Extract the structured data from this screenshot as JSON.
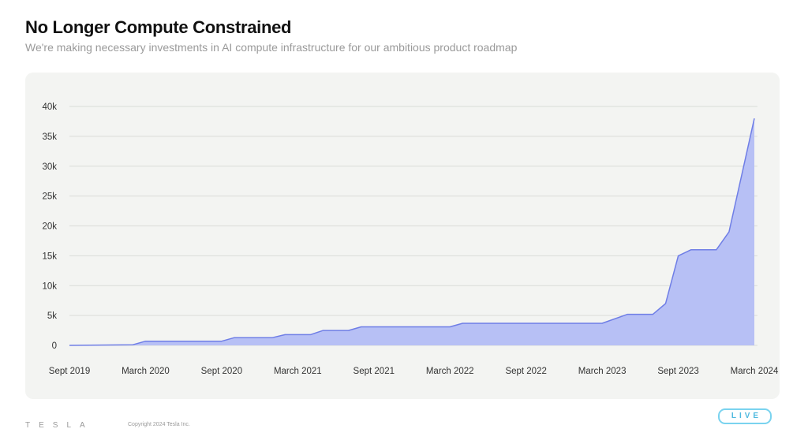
{
  "header": {
    "title": "No Longer Compute Constrained",
    "subtitle": "We're making necessary investments in AI compute infrastructure for our ambitious product roadmap"
  },
  "footer": {
    "logo": "TESLA",
    "copyright": "Copyright 2024 Tesla Inc."
  },
  "badge": {
    "label": "LIVE"
  },
  "colors": {
    "area_fill": "#b7c0f5",
    "line": "#6f7ee6",
    "grid": "#dadcd8",
    "tick_text": "#333333",
    "panel_bg": "#f3f4f2"
  },
  "chart_data": {
    "type": "area",
    "title": "",
    "xlabel": "",
    "ylabel": "",
    "ylim": [
      0,
      40000
    ],
    "grid": true,
    "y_ticks": [
      {
        "value": 0,
        "label": "0"
      },
      {
        "value": 5000,
        "label": "5k"
      },
      {
        "value": 10000,
        "label": "10k"
      },
      {
        "value": 15000,
        "label": "15k"
      },
      {
        "value": 20000,
        "label": "20k"
      },
      {
        "value": 25000,
        "label": "25k"
      },
      {
        "value": 30000,
        "label": "30k"
      },
      {
        "value": 35000,
        "label": "35k"
      },
      {
        "value": 40000,
        "label": "40k"
      }
    ],
    "x_ticks": [
      {
        "month": 0,
        "label": "Sept 2019"
      },
      {
        "month": 6,
        "label": "March 2020"
      },
      {
        "month": 12,
        "label": "Sept 2020"
      },
      {
        "month": 18,
        "label": "March 2021"
      },
      {
        "month": 24,
        "label": "Sept 2021"
      },
      {
        "month": 30,
        "label": "March 2022"
      },
      {
        "month": 36,
        "label": "Sept 2022"
      },
      {
        "month": 42,
        "label": "March 2023"
      },
      {
        "month": 48,
        "label": "Sept 2023"
      },
      {
        "month": 54,
        "label": "March 2024"
      }
    ],
    "series": [
      {
        "points": [
          [
            0,
            0
          ],
          [
            5,
            100
          ],
          [
            6,
            700
          ],
          [
            12,
            700
          ],
          [
            13,
            1300
          ],
          [
            16,
            1300
          ],
          [
            17,
            1800
          ],
          [
            19,
            1800
          ],
          [
            20,
            2500
          ],
          [
            22,
            2500
          ],
          [
            23,
            3100
          ],
          [
            30,
            3100
          ],
          [
            31,
            3700
          ],
          [
            42,
            3700
          ],
          [
            44,
            5200
          ],
          [
            46,
            5200
          ],
          [
            47,
            7000
          ],
          [
            48,
            15000
          ],
          [
            49,
            16000
          ],
          [
            51,
            16000
          ],
          [
            52,
            19000
          ],
          [
            54,
            38000
          ]
        ]
      }
    ]
  }
}
